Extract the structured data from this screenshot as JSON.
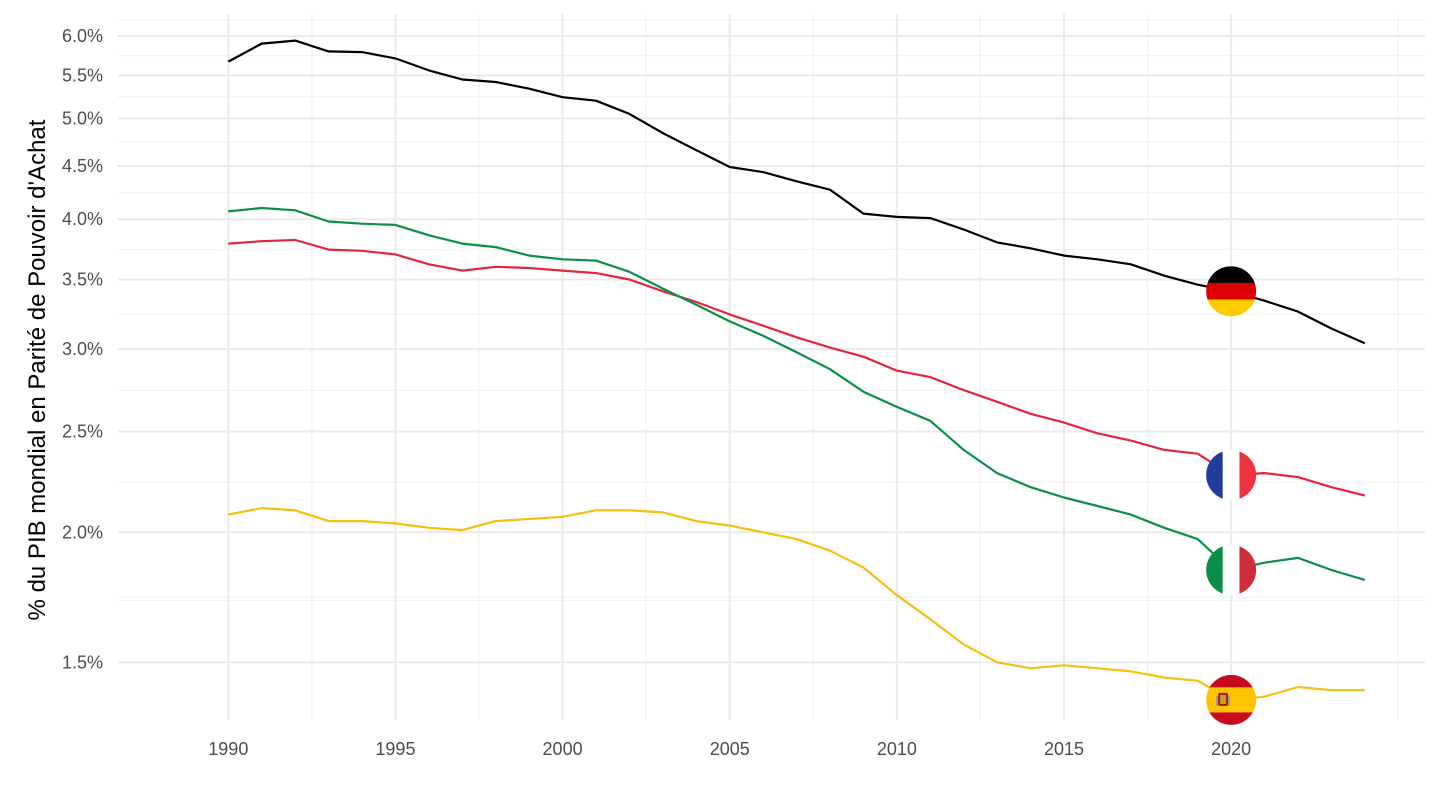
{
  "chart_data": {
    "type": "line",
    "title": "",
    "xlabel": "",
    "ylabel": "% du PIB mondial en Parité de Pouvoir d'Achat",
    "y_scale": "log",
    "xlim": [
      1986.7,
      2025.8
    ],
    "ylim": [
      1.32,
      6.3
    ],
    "x_ticks": [
      1990,
      1995,
      2000,
      2005,
      2010,
      2015,
      2020
    ],
    "y_ticks": [
      {
        "value": 1.5,
        "label": "1.5%"
      },
      {
        "value": 2.0,
        "label": "2.0%"
      },
      {
        "value": 2.5,
        "label": "2.5%"
      },
      {
        "value": 3.0,
        "label": "3.0%"
      },
      {
        "value": 3.5,
        "label": "3.5%"
      },
      {
        "value": 4.0,
        "label": "4.0%"
      },
      {
        "value": 4.5,
        "label": "4.5%"
      },
      {
        "value": 5.0,
        "label": "5.0%"
      },
      {
        "value": 5.5,
        "label": "5.5%"
      },
      {
        "value": 6.0,
        "label": "6.0%"
      }
    ],
    "x": [
      1990,
      1991,
      1992,
      1993,
      1994,
      1995,
      1996,
      1997,
      1998,
      1999,
      2000,
      2001,
      2002,
      2003,
      2004,
      2005,
      2006,
      2007,
      2008,
      2009,
      2010,
      2011,
      2012,
      2013,
      2014,
      2015,
      2016,
      2017,
      2018,
      2019,
      2020,
      2021,
      2022,
      2023,
      2024
    ],
    "series": [
      {
        "name": "Allemagne",
        "color": "#000000",
        "flag": "germany-flag",
        "flag_year": 2020,
        "values": [
          5.67,
          5.9,
          5.94,
          5.8,
          5.79,
          5.71,
          5.56,
          5.45,
          5.42,
          5.34,
          5.24,
          5.2,
          5.05,
          4.84,
          4.66,
          4.49,
          4.44,
          4.35,
          4.27,
          4.05,
          4.02,
          4.01,
          3.91,
          3.8,
          3.75,
          3.69,
          3.66,
          3.62,
          3.53,
          3.46,
          3.41,
          3.34,
          3.26,
          3.14,
          3.04
        ]
      },
      {
        "name": "France",
        "color": "#e3263d",
        "flag": "france-flag",
        "flag_year": 2020,
        "values": [
          3.79,
          3.81,
          3.82,
          3.74,
          3.73,
          3.7,
          3.62,
          3.57,
          3.6,
          3.59,
          3.57,
          3.55,
          3.5,
          3.41,
          3.33,
          3.24,
          3.16,
          3.08,
          3.01,
          2.95,
          2.86,
          2.82,
          2.74,
          2.67,
          2.6,
          2.55,
          2.49,
          2.45,
          2.4,
          2.38,
          2.27,
          2.28,
          2.26,
          2.21,
          2.17
        ]
      },
      {
        "name": "Italie",
        "color": "#0b8f48",
        "flag": "italy-flag",
        "flag_year": 2020,
        "values": [
          4.07,
          4.1,
          4.08,
          3.98,
          3.96,
          3.95,
          3.86,
          3.79,
          3.76,
          3.69,
          3.66,
          3.65,
          3.56,
          3.43,
          3.31,
          3.19,
          3.09,
          2.98,
          2.87,
          2.73,
          2.64,
          2.56,
          2.4,
          2.28,
          2.21,
          2.16,
          2.12,
          2.08,
          2.02,
          1.97,
          1.84,
          1.87,
          1.89,
          1.84,
          1.8
        ]
      },
      {
        "name": "Espagne",
        "color": "#f5bf12",
        "flag": "spain-flag",
        "flag_year": 2020,
        "values": [
          2.08,
          2.11,
          2.1,
          2.05,
          2.05,
          2.04,
          2.02,
          2.01,
          2.05,
          2.06,
          2.07,
          2.1,
          2.1,
          2.09,
          2.05,
          2.03,
          2.0,
          1.97,
          1.92,
          1.85,
          1.74,
          1.65,
          1.56,
          1.5,
          1.48,
          1.49,
          1.48,
          1.47,
          1.45,
          1.44,
          1.38,
          1.39,
          1.42,
          1.41,
          1.41
        ]
      }
    ]
  }
}
